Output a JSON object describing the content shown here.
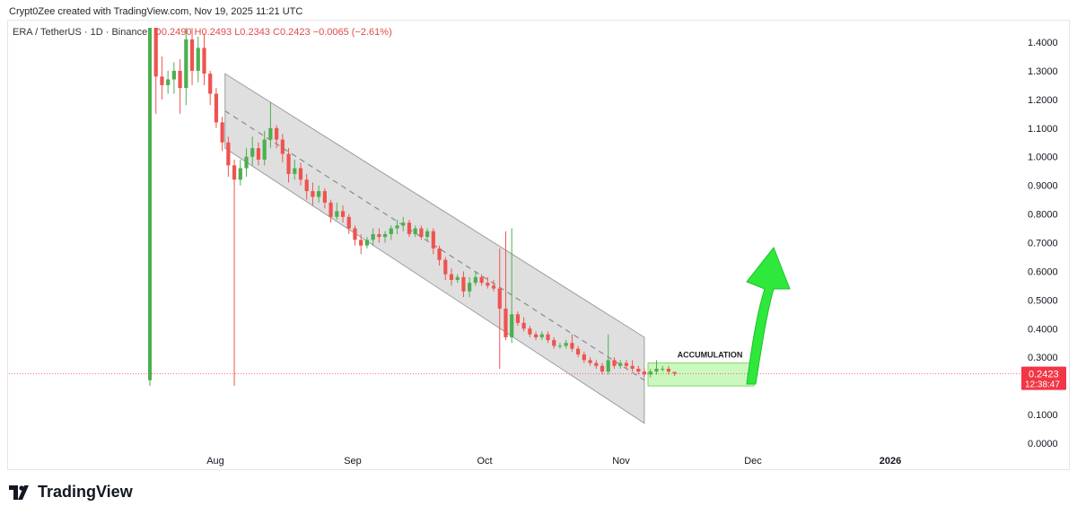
{
  "header": {
    "attribution": "Crypt0Zee created with TradingView.com, Nov 19, 2025 11:21 UTC"
  },
  "legend": {
    "symbol": "ERA / TetherUS · 1D · Binance",
    "open": "O0.2490",
    "high": "H0.2493",
    "low": "L0.2343",
    "close": "C0.2423",
    "change": "−0.0065 (−2.61%)"
  },
  "price_tag": {
    "price": "0.2423",
    "countdown": "12:38:47"
  },
  "annotation": {
    "label": "ACCUMULATION"
  },
  "footer": {
    "logo_text": "TradingView"
  },
  "colors": {
    "up": "#26a69a",
    "up_bright": "#4caf50",
    "down": "#ef5350",
    "channel_fill": "#d9d9d9",
    "accumulation_fill": "#b9f5a8",
    "arrow": "#2ee93c",
    "last_price": "#f23645"
  },
  "chart_data": {
    "type": "candlestick",
    "y_axis_labels": [
      "1.4000",
      "1.3000",
      "1.2000",
      "1.1000",
      "1.0000",
      "0.9000",
      "0.8000",
      "0.7000",
      "0.6000",
      "0.5000",
      "0.4000",
      "0.3000",
      "0.2000",
      "0.1000",
      "0.0000"
    ],
    "ylim": [
      0,
      1.45
    ],
    "x_axis_labels": [
      "Aug",
      "Sep",
      "Oct",
      "Nov",
      "Dec",
      "2026"
    ],
    "last_price": 0.2423,
    "candles": [
      {
        "o": 0.22,
        "h": 1.45,
        "l": 0.2,
        "c": 1.45
      },
      {
        "o": 1.45,
        "h": 1.45,
        "l": 1.15,
        "c": 1.28
      },
      {
        "o": 1.28,
        "h": 1.35,
        "l": 1.2,
        "c": 1.25
      },
      {
        "o": 1.25,
        "h": 1.3,
        "l": 1.22,
        "c": 1.27
      },
      {
        "o": 1.27,
        "h": 1.33,
        "l": 1.22,
        "c": 1.3
      },
      {
        "o": 1.3,
        "h": 1.34,
        "l": 1.15,
        "c": 1.24
      },
      {
        "o": 1.24,
        "h": 1.45,
        "l": 1.18,
        "c": 1.41
      },
      {
        "o": 1.41,
        "h": 1.45,
        "l": 1.25,
        "c": 1.3
      },
      {
        "o": 1.3,
        "h": 1.42,
        "l": 1.26,
        "c": 1.38
      },
      {
        "o": 1.38,
        "h": 1.43,
        "l": 1.25,
        "c": 1.29
      },
      {
        "o": 1.29,
        "h": 1.3,
        "l": 1.18,
        "c": 1.22
      },
      {
        "o": 1.22,
        "h": 1.24,
        "l": 1.1,
        "c": 1.12
      },
      {
        "o": 1.12,
        "h": 1.14,
        "l": 1.02,
        "c": 1.05
      },
      {
        "o": 1.05,
        "h": 1.07,
        "l": 0.93,
        "c": 0.97
      },
      {
        "o": 0.97,
        "h": 0.99,
        "l": 0.2,
        "c": 0.92
      },
      {
        "o": 0.92,
        "h": 0.99,
        "l": 0.9,
        "c": 0.96
      },
      {
        "o": 0.96,
        "h": 1.03,
        "l": 0.93,
        "c": 1.0
      },
      {
        "o": 1.0,
        "h": 1.07,
        "l": 0.97,
        "c": 1.03
      },
      {
        "o": 1.03,
        "h": 1.05,
        "l": 0.97,
        "c": 0.99
      },
      {
        "o": 0.99,
        "h": 1.09,
        "l": 0.97,
        "c": 1.06
      },
      {
        "o": 1.06,
        "h": 1.19,
        "l": 1.03,
        "c": 1.1
      },
      {
        "o": 1.1,
        "h": 1.11,
        "l": 1.03,
        "c": 1.06
      },
      {
        "o": 1.06,
        "h": 1.08,
        "l": 0.98,
        "c": 1.01
      },
      {
        "o": 1.01,
        "h": 1.03,
        "l": 0.91,
        "c": 0.94
      },
      {
        "o": 0.94,
        "h": 0.99,
        "l": 0.92,
        "c": 0.96
      },
      {
        "o": 0.96,
        "h": 0.98,
        "l": 0.9,
        "c": 0.92
      },
      {
        "o": 0.92,
        "h": 0.94,
        "l": 0.85,
        "c": 0.88
      },
      {
        "o": 0.88,
        "h": 0.91,
        "l": 0.83,
        "c": 0.86
      },
      {
        "o": 0.86,
        "h": 0.9,
        "l": 0.84,
        "c": 0.88
      },
      {
        "o": 0.88,
        "h": 0.89,
        "l": 0.82,
        "c": 0.84
      },
      {
        "o": 0.84,
        "h": 0.85,
        "l": 0.77,
        "c": 0.79
      },
      {
        "o": 0.79,
        "h": 0.84,
        "l": 0.78,
        "c": 0.81
      },
      {
        "o": 0.81,
        "h": 0.83,
        "l": 0.77,
        "c": 0.79
      },
      {
        "o": 0.79,
        "h": 0.8,
        "l": 0.73,
        "c": 0.75
      },
      {
        "o": 0.75,
        "h": 0.76,
        "l": 0.69,
        "c": 0.71
      },
      {
        "o": 0.71,
        "h": 0.73,
        "l": 0.66,
        "c": 0.69
      },
      {
        "o": 0.69,
        "h": 0.72,
        "l": 0.68,
        "c": 0.71
      },
      {
        "o": 0.71,
        "h": 0.75,
        "l": 0.69,
        "c": 0.73
      },
      {
        "o": 0.73,
        "h": 0.75,
        "l": 0.7,
        "c": 0.72
      },
      {
        "o": 0.72,
        "h": 0.74,
        "l": 0.7,
        "c": 0.73
      },
      {
        "o": 0.73,
        "h": 0.76,
        "l": 0.71,
        "c": 0.75
      },
      {
        "o": 0.75,
        "h": 0.78,
        "l": 0.73,
        "c": 0.76
      },
      {
        "o": 0.76,
        "h": 0.79,
        "l": 0.74,
        "c": 0.77
      },
      {
        "o": 0.77,
        "h": 0.78,
        "l": 0.72,
        "c": 0.73
      },
      {
        "o": 0.73,
        "h": 0.76,
        "l": 0.72,
        "c": 0.75
      },
      {
        "o": 0.75,
        "h": 0.76,
        "l": 0.71,
        "c": 0.72
      },
      {
        "o": 0.72,
        "h": 0.75,
        "l": 0.71,
        "c": 0.74
      },
      {
        "o": 0.74,
        "h": 0.75,
        "l": 0.66,
        "c": 0.68
      },
      {
        "o": 0.68,
        "h": 0.69,
        "l": 0.62,
        "c": 0.64
      },
      {
        "o": 0.64,
        "h": 0.65,
        "l": 0.57,
        "c": 0.59
      },
      {
        "o": 0.59,
        "h": 0.61,
        "l": 0.55,
        "c": 0.57
      },
      {
        "o": 0.57,
        "h": 0.59,
        "l": 0.56,
        "c": 0.58
      },
      {
        "o": 0.58,
        "h": 0.6,
        "l": 0.51,
        "c": 0.53
      },
      {
        "o": 0.53,
        "h": 0.58,
        "l": 0.51,
        "c": 0.56
      },
      {
        "o": 0.56,
        "h": 0.6,
        "l": 0.55,
        "c": 0.58
      },
      {
        "o": 0.58,
        "h": 0.59,
        "l": 0.55,
        "c": 0.56
      },
      {
        "o": 0.56,
        "h": 0.58,
        "l": 0.54,
        "c": 0.55
      },
      {
        "o": 0.55,
        "h": 0.57,
        "l": 0.53,
        "c": 0.54
      },
      {
        "o": 0.54,
        "h": 0.68,
        "l": 0.26,
        "c": 0.47
      },
      {
        "o": 0.47,
        "h": 0.74,
        "l": 0.36,
        "c": 0.37
      },
      {
        "o": 0.37,
        "h": 0.75,
        "l": 0.35,
        "c": 0.45
      },
      {
        "o": 0.45,
        "h": 0.46,
        "l": 0.41,
        "c": 0.42
      },
      {
        "o": 0.42,
        "h": 0.44,
        "l": 0.39,
        "c": 0.4
      },
      {
        "o": 0.4,
        "h": 0.41,
        "l": 0.37,
        "c": 0.38
      },
      {
        "o": 0.38,
        "h": 0.39,
        "l": 0.36,
        "c": 0.37
      },
      {
        "o": 0.37,
        "h": 0.39,
        "l": 0.36,
        "c": 0.38
      },
      {
        "o": 0.38,
        "h": 0.39,
        "l": 0.35,
        "c": 0.36
      },
      {
        "o": 0.36,
        "h": 0.37,
        "l": 0.33,
        "c": 0.34
      },
      {
        "o": 0.34,
        "h": 0.35,
        "l": 0.33,
        "c": 0.34
      },
      {
        "o": 0.34,
        "h": 0.36,
        "l": 0.33,
        "c": 0.35
      },
      {
        "o": 0.35,
        "h": 0.38,
        "l": 0.32,
        "c": 0.33
      },
      {
        "o": 0.33,
        "h": 0.34,
        "l": 0.3,
        "c": 0.31
      },
      {
        "o": 0.31,
        "h": 0.32,
        "l": 0.28,
        "c": 0.29
      },
      {
        "o": 0.29,
        "h": 0.3,
        "l": 0.27,
        "c": 0.28
      },
      {
        "o": 0.28,
        "h": 0.29,
        "l": 0.26,
        "c": 0.27
      },
      {
        "o": 0.27,
        "h": 0.28,
        "l": 0.24,
        "c": 0.25
      },
      {
        "o": 0.25,
        "h": 0.38,
        "l": 0.24,
        "c": 0.29
      },
      {
        "o": 0.29,
        "h": 0.3,
        "l": 0.26,
        "c": 0.27
      },
      {
        "o": 0.27,
        "h": 0.29,
        "l": 0.26,
        "c": 0.28
      },
      {
        "o": 0.28,
        "h": 0.29,
        "l": 0.26,
        "c": 0.27
      },
      {
        "o": 0.27,
        "h": 0.29,
        "l": 0.25,
        "c": 0.26
      },
      {
        "o": 0.26,
        "h": 0.27,
        "l": 0.24,
        "c": 0.25
      },
      {
        "o": 0.25,
        "h": 0.26,
        "l": 0.23,
        "c": 0.24
      },
      {
        "o": 0.24,
        "h": 0.26,
        "l": 0.23,
        "c": 0.25
      },
      {
        "o": 0.25,
        "h": 0.29,
        "l": 0.24,
        "c": 0.26
      },
      {
        "o": 0.26,
        "h": 0.27,
        "l": 0.25,
        "c": 0.26
      },
      {
        "o": 0.26,
        "h": 0.27,
        "l": 0.24,
        "c": 0.25
      },
      {
        "o": 0.249,
        "h": 0.2493,
        "l": 0.2343,
        "c": 0.2423
      }
    ],
    "channel": {
      "upper_start": {
        "candle": 8,
        "price": 1.29
      },
      "upper_end": {
        "candle": 79,
        "price": 0.37
      },
      "lower_start": {
        "candle": 8,
        "price": 1.03
      },
      "lower_end": {
        "candle": 79,
        "price": 0.07
      },
      "mid_dashed": true
    },
    "accumulation_zone": {
      "low": 0.2,
      "high": 0.28
    },
    "grid": false
  }
}
